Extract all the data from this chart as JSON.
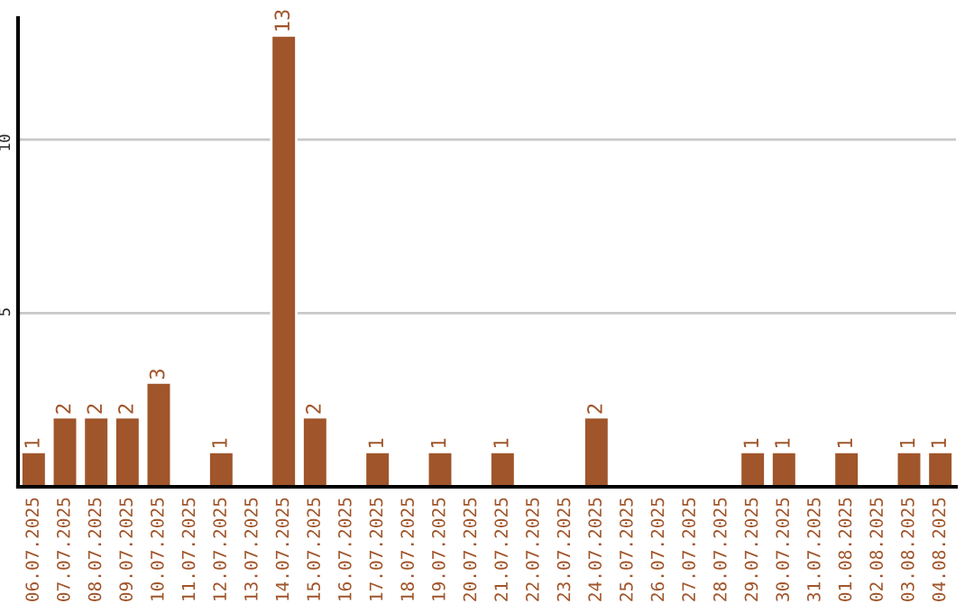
{
  "chart_data": {
    "type": "bar",
    "categories": [
      "06.07.2025",
      "07.07.2025",
      "08.07.2025",
      "09.07.2025",
      "10.07.2025",
      "11.07.2025",
      "12.07.2025",
      "13.07.2025",
      "14.07.2025",
      "15.07.2025",
      "16.07.2025",
      "17.07.2025",
      "18.07.2025",
      "19.07.2025",
      "20.07.2025",
      "21.07.2025",
      "22.07.2025",
      "23.07.2025",
      "24.07.2025",
      "25.07.2025",
      "26.07.2025",
      "27.07.2025",
      "28.07.2025",
      "29.07.2025",
      "30.07.2025",
      "31.07.2025",
      "01.08.2025",
      "02.08.2025",
      "03.08.2025",
      "04.08.2025"
    ],
    "values": [
      1,
      2,
      2,
      2,
      3,
      0,
      1,
      0,
      13,
      2,
      0,
      1,
      0,
      1,
      0,
      1,
      0,
      0,
      2,
      0,
      0,
      0,
      0,
      1,
      1,
      0,
      1,
      0,
      1,
      1
    ],
    "value_labels": [
      "1",
      "2",
      "2",
      "2",
      "3",
      null,
      "1",
      null,
      "13",
      "2",
      null,
      "1",
      null,
      "1",
      null,
      "1",
      null,
      null,
      "2",
      null,
      null,
      null,
      null,
      "1",
      "1",
      null,
      "1",
      null,
      "1",
      "1"
    ],
    "color": "#a0552a",
    "ylim": [
      0,
      13.5
    ],
    "yticks": [
      5,
      10
    ],
    "grid": "y"
  }
}
